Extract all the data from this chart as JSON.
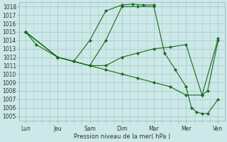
{
  "title": "",
  "xlabel": "Pression niveau de la mer( hPa )",
  "ylabel": "",
  "background_color": "#cce8e8",
  "grid_color": "#aacccc",
  "line_color": "#1a6b1a",
  "marker_color": "#1a6b1a",
  "ylim": [
    1004.5,
    1018.5
  ],
  "yticks": [
    1005,
    1006,
    1007,
    1008,
    1009,
    1010,
    1011,
    1012,
    1013,
    1014,
    1015,
    1016,
    1017,
    1018
  ],
  "xtick_labels": [
    "Lun",
    "Jeu",
    "Sam",
    "Dim",
    "Mar",
    "Mer",
    "Ven"
  ],
  "xtick_positions": [
    0,
    1,
    2,
    3,
    4,
    5,
    6
  ],
  "series": [
    {
      "x": [
        0,
        0.33,
        1,
        1.5,
        2,
        2.5,
        3,
        3.33,
        3.67,
        4
      ],
      "y": [
        1015,
        1013.5,
        1012,
        1011.5,
        1014,
        1017.5,
        1018.2,
        1018.3,
        1018.2,
        1018.2
      ]
    },
    {
      "x": [
        0,
        1,
        1.5,
        2,
        2.5,
        3,
        3.5,
        4,
        4.33,
        4.67,
        5,
        5.17,
        5.33,
        5.5,
        5.67,
        6
      ],
      "y": [
        1015,
        1012,
        1011.5,
        1011,
        1014,
        1018,
        1018,
        1018,
        1012.5,
        1010.5,
        1008.5,
        1006,
        1005.5,
        1005.3,
        1005.3,
        1007.0
      ]
    },
    {
      "x": [
        0,
        1,
        1.5,
        2,
        2.5,
        3,
        3.5,
        4,
        4.5,
        5,
        5.5,
        5.67,
        6
      ],
      "y": [
        1015,
        1012,
        1011.5,
        1011,
        1011,
        1012,
        1012.5,
        1013,
        1013.2,
        1013.5,
        1007.5,
        1008.0,
        1014.0
      ]
    },
    {
      "x": [
        0,
        1,
        1.5,
        2,
        2.5,
        3,
        3.5,
        4,
        4.5,
        5,
        5.5,
        6
      ],
      "y": [
        1015,
        1012,
        1011.5,
        1011,
        1010.5,
        1010,
        1009.5,
        1009,
        1008.5,
        1007.5,
        1007.5,
        1014.2
      ]
    }
  ]
}
